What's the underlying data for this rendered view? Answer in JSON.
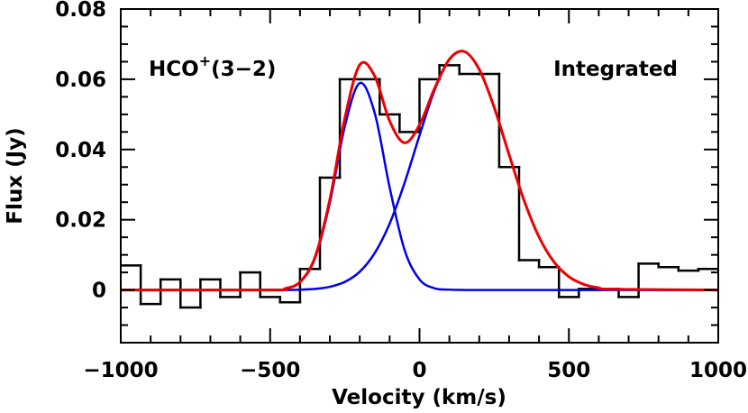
{
  "chart_data": {
    "type": "spectrum",
    "xlabel": "Velocity (km/s)",
    "ylabel": "Flux (Jy)",
    "annotations": [
      {
        "text": "HCO",
        "superscript": "+",
        "suffix": "(3−2)"
      },
      {
        "text": "Integrated"
      }
    ],
    "xlim": [
      -1000,
      1000
    ],
    "ylim": [
      -0.015,
      0.08
    ],
    "xticks": [
      {
        "value": -1000,
        "label": "−1000"
      },
      {
        "value": -500,
        "label": "−500"
      },
      0,
      500,
      1000
    ],
    "xminor": [
      -900,
      -800,
      -700,
      -600,
      -400,
      -300,
      -200,
      -100,
      100,
      200,
      300,
      400,
      600,
      700,
      800,
      900
    ],
    "yticks": [
      0,
      0.02,
      0.04,
      0.06,
      0.08
    ],
    "yminor": [
      -0.01,
      -0.005,
      0.005,
      0.01,
      0.015,
      0.025,
      0.03,
      0.035,
      0.045,
      0.05,
      0.055,
      0.065,
      0.07,
      0.075
    ],
    "series": [
      {
        "type": "step",
        "color": "#000000",
        "bins": [
          -1000,
          -933.3,
          -866.7,
          -800,
          -733.3,
          -666.7,
          -600,
          -533.3,
          -466.7,
          -400,
          -333.3,
          -266.7,
          -200,
          -133.3,
          -66.7,
          0,
          66.7,
          133.3,
          200,
          266.7,
          333.3,
          400,
          466.7,
          533.3,
          600,
          666.7,
          733.3,
          800,
          866.7,
          933.3,
          1000
        ],
        "values": [
          0.007,
          -0.004,
          0.003,
          -0.005,
          0.003,
          -0.002,
          0.005,
          -0.002,
          -0.0035,
          0.006,
          0.032,
          0.06,
          0.06,
          0.05,
          0.045,
          0.06,
          0.064,
          0.0615,
          0.0615,
          0.035,
          0.0085,
          0.0065,
          -0.002,
          0.0003,
          0.0003,
          -0.002,
          0.0075,
          0.0065,
          0.0055,
          0.006
        ]
      },
      {
        "type": "line",
        "color": "#0000ee",
        "x": [
          -1000,
          -500,
          -450,
          -400,
          -350,
          -300,
          -250,
          -200,
          -150,
          -100,
          -50,
          0,
          50,
          100,
          150,
          200,
          250,
          300,
          350,
          400,
          450,
          500,
          550,
          600,
          650,
          1000
        ],
        "values": [
          0,
          0,
          0.0004,
          0.0022,
          0.009,
          0.0249,
          0.0466,
          0.0589,
          0.0504,
          0.0292,
          0.0114,
          0.003,
          0.0005,
          0.0001,
          0,
          0,
          0,
          0,
          0,
          0,
          0,
          0,
          0,
          0,
          0,
          0
        ]
      },
      {
        "type": "line",
        "color": "#0000ee",
        "x": [
          -1000,
          -500,
          -450,
          -400,
          -350,
          -300,
          -250,
          -200,
          -150,
          -100,
          -50,
          0,
          50,
          100,
          150,
          200,
          250,
          300,
          350,
          400,
          450,
          500,
          550,
          600,
          650,
          1000
        ],
        "values": [
          0,
          0,
          0,
          0.0001,
          0.0003,
          0.0009,
          0.0023,
          0.0052,
          0.0105,
          0.0189,
          0.0305,
          0.044,
          0.0568,
          0.0656,
          0.0679,
          0.0628,
          0.052,
          0.0385,
          0.0255,
          0.0151,
          0.008,
          0.0038,
          0.0016,
          0.0006,
          0.0002,
          0
        ]
      },
      {
        "type": "line",
        "color": "#ee0000",
        "x": [
          -1000,
          -500,
          -450,
          -400,
          -350,
          -300,
          -250,
          -200,
          -150,
          -100,
          -50,
          0,
          50,
          100,
          150,
          200,
          250,
          300,
          350,
          400,
          450,
          500,
          550,
          600,
          650,
          1000
        ],
        "values": [
          0,
          0,
          0.0004,
          0.0023,
          0.0093,
          0.0258,
          0.0489,
          0.0641,
          0.0609,
          0.0481,
          0.0419,
          0.047,
          0.0573,
          0.0657,
          0.0679,
          0.0628,
          0.052,
          0.0385,
          0.0255,
          0.0151,
          0.008,
          0.0038,
          0.0016,
          0.0006,
          0.0002,
          0
        ]
      }
    ]
  }
}
